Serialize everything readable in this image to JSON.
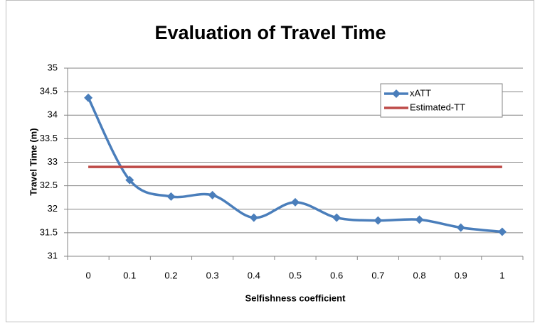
{
  "chart_data": {
    "type": "line",
    "title": "Evaluation of Travel Time",
    "x_label": "Selfishness coefficient",
    "y_label": "Travel Time (m)",
    "categories": [
      "0",
      "0.1",
      "0.2",
      "0.3",
      "0.4",
      "0.5",
      "0.6",
      "0.7",
      "0.8",
      "0.9",
      "1"
    ],
    "series": [
      {
        "name": "xATT",
        "color": "#4a7ebb",
        "marker": "diamond",
        "smooth": true,
        "values": [
          34.37,
          32.62,
          32.27,
          32.3,
          31.82,
          32.15,
          31.82,
          31.76,
          31.78,
          31.61,
          31.52
        ]
      },
      {
        "name": "Estimated-TT",
        "color": "#be4b48",
        "values": [
          32.9,
          32.9,
          32.9,
          32.9,
          32.9,
          32.9,
          32.9,
          32.9,
          32.9,
          32.9,
          32.9
        ]
      }
    ],
    "ylim": [
      31,
      35
    ],
    "yticks": [
      31,
      31.5,
      32,
      32.5,
      33,
      33.5,
      34,
      34.5,
      35
    ],
    "grid": true,
    "legend": "top-right"
  }
}
